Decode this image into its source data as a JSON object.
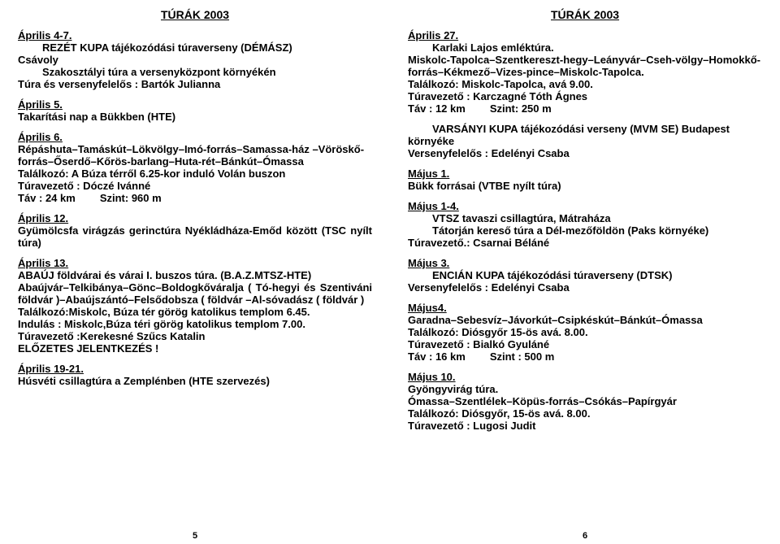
{
  "header": {
    "title": "TÚRÁK 2003"
  },
  "pageLeft": {
    "number": "5",
    "e1": {
      "date": "Április 4-7.",
      "l1": "REZÉT KUPA tájékozódási túraverseny (DÉMÁSZ)",
      "l2": "Csávoly",
      "l3": "Szakosztályi túra a versenyközpont környékén",
      "l4": "Túra és versenyfelelős : Bartók Julianna"
    },
    "e2": {
      "date": "Április 5.",
      "l1": "Takarítási nap a Bükkben (HTE)"
    },
    "e3": {
      "date": "Április 6.",
      "l1": "Répáshuta–Tamáskút–Lökvölgy–Imó-forrás–Samassa-ház –Vöröskő-forrás–Őserdő–Kőrös-barlang–Huta-rét–Bánkút–Ómassa",
      "l2": "Találkozó: A Búza térről 6.25-kor induló Volán buszon",
      "l3": "Túravezető : Dóczé Ivánné",
      "l4a": "Táv : 24 km",
      "l4b": "Szint: 960  m"
    },
    "e4": {
      "date": "Április 12.",
      "l1": "Gyümölcsfa virágzás gerinctúra Nyékládháza-Emőd között (TSC nyílt túra)"
    },
    "e5": {
      "date": "Április 13.",
      "l1": "ABAÚJ földvárai és várai I. buszos túra. (B.A.Z.MTSZ-HTE)",
      "l2": "Abaújvár–Telkibánya–Gönc–Boldogkőváralja ( Tó-hegyi és Szentiváni földvár )–Abaújszántó–Felsődobsza ( földvár –Al-sóvadász ( földvár )",
      "l3": "Találkozó:Miskolc, Búza tér görög katolikus templom 6.45.",
      "l4": "Indulás : Miskolc,Búza téri görög katolikus templom 7.00.",
      "l5": "Túravezető :Kerekesné Szűcs Katalin",
      "l6": "ELŐZETES  JELENTKEZÉS !"
    },
    "e6": {
      "date": "Április 19-21.",
      "l1": "Húsvéti csillagtúra a Zemplénben (HTE szervezés)"
    }
  },
  "pageRight": {
    "number": "6",
    "e1": {
      "date": "Április 27.",
      "l1": "Karlaki Lajos emléktúra.",
      "l2": "Miskolc-Tapolca–Szentkereszt-hegy–Leányvár–Cseh-völgy–Homokkő-forrás–Kékmező–Vizes-pince–Miskolc-Tapolca.",
      "l3": "Találkozó: Miskolc-Tapolca, avá 9.00.",
      "l4": "Túravezető : Karczagné Tóth Ágnes",
      "l5a": "Táv : 12 km",
      "l5b": "Szint: 250 m"
    },
    "e2": {
      "l1": "VARSÁNYI KUPA tájékozódási verseny (MVM SE) Budapest környéke",
      "l2": "Versenyfelelős : Edelényi Csaba"
    },
    "e3": {
      "date": "Május 1.",
      "l1": "Bükk forrásai (VTBE nyílt túra)"
    },
    "e4": {
      "date": "Május 1-4.",
      "l1": "VTSZ tavaszi csillagtúra, Mátraháza",
      "l2": "Tátorján kereső túra a Dél-mezőföldön (Paks környéke)",
      "l3": "Túravezető.: Csarnai Béláné"
    },
    "e5": {
      "date": "Május 3.",
      "l1": "ENCIÁN KUPA tájékozódási túraverseny (DTSK)",
      "l2": "Versenyfelelős : Edelényi Csaba"
    },
    "e6": {
      "date": "Május4.",
      "l1": "Garadna–Sebesvíz–Jávorkút–Csipkéskút–Bánkút–Ómassa",
      "l2": "Találkozó: Diósgyőr 15-ös avá. 8.00.",
      "l3": "Túravezető : Bialkó Gyuláné",
      "l4a": "Táv : 16 km",
      "l4b": "Szint : 500 m"
    },
    "e7": {
      "date": "Május 10.",
      "l1": "Gyöngyvirág túra.",
      "l2": "Ómassa–Szentlélek–Köpüs-forrás–Csókás–Papírgyár",
      "l3": "Találkozó: Diósgyőr, 15-ös avá. 8.00.",
      "l4": "Túravezető : Lugosi Judit"
    }
  }
}
